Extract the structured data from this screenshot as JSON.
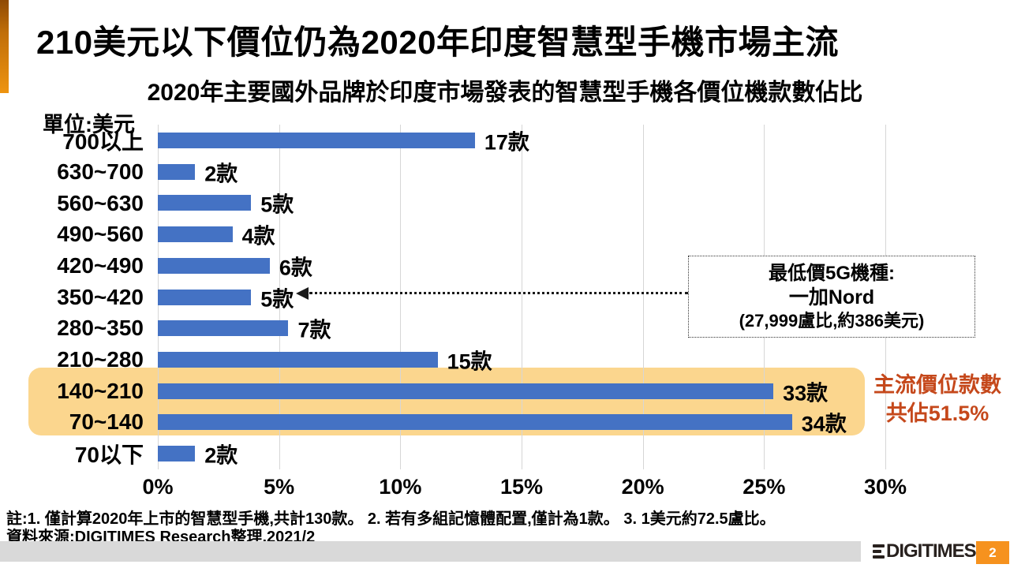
{
  "slide": {
    "title": "210美元以下價位仍為2020年印度智慧型手機市場主流",
    "subtitle": "2020年主要國外品牌於印度市場發表的智慧型手機各價位機款數佔比",
    "unit_label": "單位:美元",
    "notes": "註:1. 僅計算2020年上市的智慧型手機,共計130款。 2. 若有多組記憶體配置,僅計為1款。 3. 1美元約72.5盧比。",
    "source": "資料來源:DIGITIMES Research整理,2021/2",
    "footer": {
      "logo_text": "DIGITIMES",
      "page_number": "2",
      "page_box_color": "#f6921e",
      "bar_color": "#d9d9d9"
    },
    "accent_colors": [
      "#8f4a05",
      "#ee9410"
    ]
  },
  "chart_data": {
    "type": "bar",
    "orientation": "horizontal",
    "title": "2020年主要國外品牌於印度市場發表的智慧型手機各價位機款數佔比",
    "unit": "美元",
    "categories": [
      "700以上",
      "630~700",
      "560~630",
      "490~560",
      "420~490",
      "350~420",
      "280~350",
      "210~280",
      "140~210",
      "70~140",
      "70以下"
    ],
    "counts": [
      17,
      2,
      5,
      4,
      6,
      5,
      7,
      15,
      33,
      34,
      2
    ],
    "bar_labels": [
      "17款",
      "2款",
      "5款",
      "4款",
      "6款",
      "5款",
      "7款",
      "15款",
      "33款",
      "34款",
      "2款"
    ],
    "values_pct": [
      13.1,
      1.5,
      3.8,
      3.1,
      4.6,
      3.8,
      5.4,
      11.5,
      25.4,
      26.2,
      1.5
    ],
    "total_models": 130,
    "x_ticks": [
      "0%",
      "5%",
      "10%",
      "15%",
      "20%",
      "25%",
      "30%"
    ],
    "xlim": [
      0,
      30
    ],
    "grid": true,
    "legend": "none",
    "bar_color": "#4472c4",
    "gridline_color": "#d6d6d6",
    "highlight": {
      "categories": [
        "140~210",
        "70~140"
      ],
      "band_color": "#fbd488",
      "label_line1": "主流價位款數",
      "label_line2": "共佔51.5%",
      "label_color": "#c5481b"
    },
    "annotation": {
      "line1": "最低價5G機種:",
      "line2": "一加Nord",
      "line3": "(27,999盧比,約386美元)",
      "points_to_category": "350~420"
    }
  }
}
